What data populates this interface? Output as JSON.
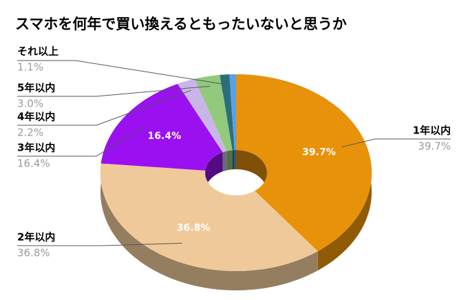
{
  "chart_data": {
    "type": "donut3d",
    "title": "スマホを何年で買い換えるともったいないと思うか",
    "categories": [
      "1年以内",
      "2年以内",
      "3年以内",
      "4年以内",
      "5年以内",
      "それ以上",
      null
    ],
    "values": [
      39.7,
      36.8,
      16.4,
      2.2,
      3.0,
      1.1,
      0.8
    ],
    "value_labels": [
      "39.7%",
      "36.8%",
      "16.4%",
      "2.2%",
      "3.0%",
      "1.1%",
      null
    ],
    "colors": [
      "#e8920a",
      "#f0c99a",
      "#9a10f0",
      "#c9b6e8",
      "#92c97c",
      "#2b6f7a",
      "#5c9fe8"
    ]
  }
}
